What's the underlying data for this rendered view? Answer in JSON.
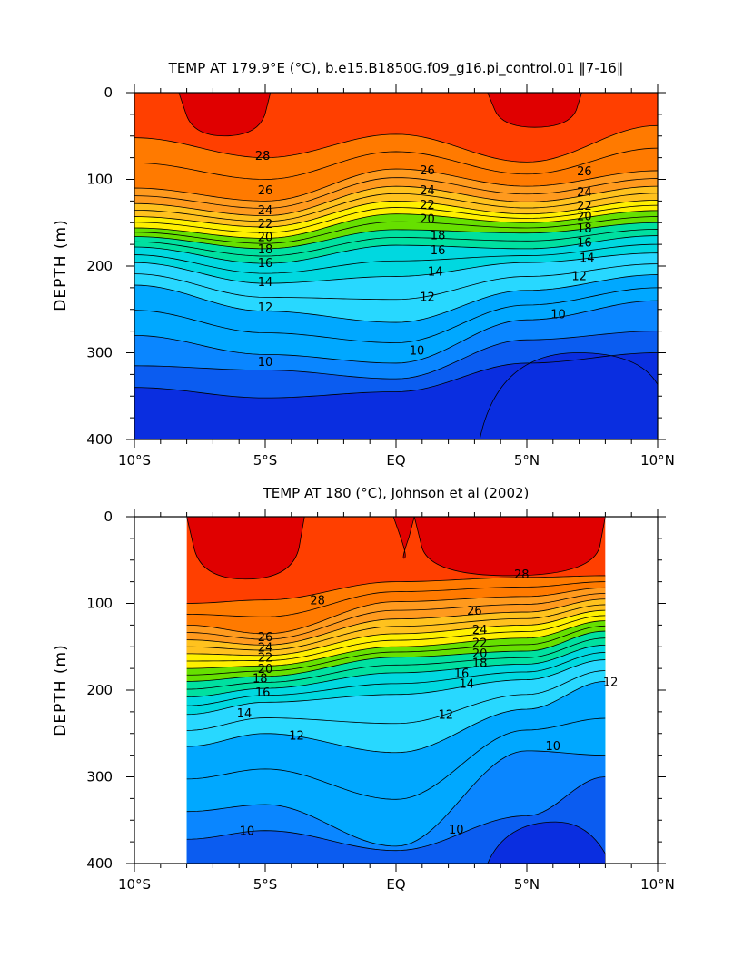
{
  "chart_data": [
    {
      "type": "contour",
      "title": "TEMP AT 179.9°E (°C), b.e15.B1850G.f09_g16.pi_control.01 ‖7-16‖",
      "xlabel": "",
      "ylabel": "DEPTH (m)",
      "xlim": [
        -10,
        10
      ],
      "ylim": [
        400,
        0
      ],
      "x_ticks": [
        -10,
        -5,
        0,
        5,
        10
      ],
      "x_tick_labels": [
        "10°S",
        "5°S",
        "EQ",
        "5°N",
        "10°N"
      ],
      "y_ticks": [
        0,
        100,
        200,
        300,
        400
      ],
      "y_tick_labels": [
        "0",
        "100",
        "200",
        "300",
        "400"
      ],
      "data_extent_x": [
        -10,
        10
      ],
      "isotherms": [
        {
          "level": 28,
          "label": "28",
          "x": [
            -10,
            -5,
            0,
            5,
            10
          ],
          "depth": [
            52,
            75,
            48,
            80,
            38
          ]
        },
        {
          "level": 26,
          "label": "26",
          "x": [
            -10,
            -5,
            0,
            5,
            10
          ],
          "depth": [
            110,
            125,
            88,
            108,
            90
          ]
        },
        {
          "level": 24,
          "label": "24",
          "x": [
            -10,
            -5,
            0,
            5,
            10
          ],
          "depth": [
            128,
            142,
            108,
            126,
            108
          ]
        },
        {
          "level": 22,
          "label": "22",
          "x": [
            -10,
            -5,
            0,
            5,
            10
          ],
          "depth": [
            143,
            155,
            125,
            140,
            124
          ]
        },
        {
          "level": 20,
          "label": "20",
          "x": [
            -10,
            -5,
            0,
            5,
            10
          ],
          "depth": [
            156,
            168,
            140,
            150,
            136
          ]
        },
        {
          "level": 18,
          "label": "18",
          "x": [
            -10,
            -5,
            0,
            5,
            10
          ],
          "depth": [
            166,
            180,
            158,
            162,
            150
          ]
        },
        {
          "level": 16,
          "label": "16",
          "x": [
            -10,
            -5,
            0,
            5,
            10
          ],
          "depth": [
            178,
            197,
            176,
            180,
            165
          ]
        },
        {
          "level": 14,
          "label": "14",
          "x": [
            -10,
            -5,
            0,
            5,
            10
          ],
          "depth": [
            196,
            220,
            212,
            196,
            185
          ]
        },
        {
          "level": 12,
          "label": "12",
          "x": [
            -10,
            -5,
            0,
            5,
            10
          ],
          "depth": [
            222,
            252,
            265,
            228,
            210
          ]
        },
        {
          "level": 10,
          "label": "10",
          "x": [
            -10,
            -5,
            0,
            5,
            10
          ],
          "depth": [
            280,
            302,
            312,
            262,
            240
          ]
        },
        {
          "level": 9,
          "label": "",
          "x": [
            -10,
            -5,
            0,
            5,
            10
          ],
          "depth": [
            315,
            320,
            330,
            285,
            275
          ]
        },
        {
          "level": 8,
          "label": "",
          "x": [
            -10,
            -5,
            0,
            5,
            10
          ],
          "depth": [
            340,
            352,
            345,
            312,
            300
          ]
        }
      ],
      "contour_labels": [
        {
          "text": "28",
          "x": -5.1,
          "depth": 72
        },
        {
          "text": "26",
          "x": -5,
          "depth": 112
        },
        {
          "text": "24",
          "x": -5,
          "depth": 135
        },
        {
          "text": "22",
          "x": -5,
          "depth": 151
        },
        {
          "text": "20",
          "x": -5,
          "depth": 166
        },
        {
          "text": "18",
          "x": -5,
          "depth": 180
        },
        {
          "text": "16",
          "x": -5,
          "depth": 196
        },
        {
          "text": "14",
          "x": -5,
          "depth": 218
        },
        {
          "text": "12",
          "x": -5,
          "depth": 247
        },
        {
          "text": "10",
          "x": -5,
          "depth": 310
        },
        {
          "text": "26",
          "x": 1.2,
          "depth": 89
        },
        {
          "text": "24",
          "x": 1.2,
          "depth": 112
        },
        {
          "text": "22",
          "x": 1.2,
          "depth": 129
        },
        {
          "text": "20",
          "x": 1.2,
          "depth": 145
        },
        {
          "text": "18",
          "x": 1.6,
          "depth": 164
        },
        {
          "text": "16",
          "x": 1.6,
          "depth": 181
        },
        {
          "text": "14",
          "x": 1.5,
          "depth": 206
        },
        {
          "text": "12",
          "x": 1.2,
          "depth": 235
        },
        {
          "text": "10",
          "x": 0.8,
          "depth": 297
        },
        {
          "text": "26",
          "x": 7.2,
          "depth": 90
        },
        {
          "text": "24",
          "x": 7.2,
          "depth": 114
        },
        {
          "text": "22",
          "x": 7.2,
          "depth": 130
        },
        {
          "text": "20",
          "x": 7.2,
          "depth": 142
        },
        {
          "text": "18",
          "x": 7.2,
          "depth": 156
        },
        {
          "text": "16",
          "x": 7.2,
          "depth": 172
        },
        {
          "text": "14",
          "x": 7.3,
          "depth": 190
        },
        {
          "text": "12",
          "x": 7.0,
          "depth": 211
        },
        {
          "text": "10",
          "x": 6.2,
          "depth": 255
        }
      ]
    },
    {
      "type": "contour",
      "title": "TEMP AT 180 (°C), Johnson et al (2002)",
      "xlabel": "",
      "ylabel": "DEPTH (m)",
      "xlim": [
        -10,
        10
      ],
      "ylim": [
        400,
        0
      ],
      "x_ticks": [
        -10,
        -5,
        0,
        5,
        10
      ],
      "x_tick_labels": [
        "10°S",
        "5°S",
        "EQ",
        "5°N",
        "10°N"
      ],
      "y_ticks": [
        0,
        100,
        200,
        300,
        400
      ],
      "y_tick_labels": [
        "0",
        "100",
        "200",
        "300",
        "400"
      ],
      "data_extent_x": [
        -8,
        8
      ],
      "isotherms": [
        {
          "level": 28,
          "label": "28",
          "x": [
            -8,
            -5,
            0,
            5,
            8
          ],
          "depth": [
            100,
            96,
            75,
            70,
            68
          ]
        },
        {
          "level": 26,
          "label": "26",
          "x": [
            -8,
            -5,
            0,
            5,
            8
          ],
          "depth": [
            125,
            135,
            98,
            92,
            82
          ]
        },
        {
          "level": 24,
          "label": "24",
          "x": [
            -8,
            -5,
            0,
            5,
            8
          ],
          "depth": [
            142,
            148,
            118,
            110,
            95
          ]
        },
        {
          "level": 22,
          "label": "22",
          "x": [
            -8,
            -5,
            0,
            5,
            8
          ],
          "depth": [
            158,
            160,
            135,
            125,
            108
          ]
        },
        {
          "level": 20,
          "label": "20",
          "x": [
            -8,
            -5,
            0,
            5,
            8
          ],
          "depth": [
            175,
            172,
            150,
            140,
            120
          ]
        },
        {
          "level": 18,
          "label": "18",
          "x": [
            -8,
            -5,
            0,
            5,
            8
          ],
          "depth": [
            190,
            184,
            162,
            155,
            132
          ]
        },
        {
          "level": 16,
          "label": "16",
          "x": [
            -8,
            -5,
            0,
            5,
            8
          ],
          "depth": [
            208,
            198,
            180,
            170,
            148
          ]
        },
        {
          "level": 14,
          "label": "14",
          "x": [
            -8,
            -5,
            0,
            5,
            8
          ],
          "depth": [
            228,
            214,
            205,
            188,
            165
          ]
        },
        {
          "level": 12,
          "label": "12",
          "x": [
            -8,
            -5,
            0,
            5,
            8
          ],
          "depth": [
            265,
            250,
            272,
            222,
            190
          ]
        },
        {
          "level": 10,
          "label": "10",
          "x": [
            -8,
            -5,
            0,
            5,
            8
          ],
          "depth": [
            340,
            332,
            380,
            270,
            275
          ]
        },
        {
          "level": 9,
          "label": "",
          "x": [
            -8,
            -5,
            0,
            5,
            8
          ],
          "depth": [
            372,
            362,
            385,
            345,
            300
          ]
        }
      ],
      "contour_labels": [
        {
          "text": "28",
          "x": -3.0,
          "depth": 96
        },
        {
          "text": "26",
          "x": -5,
          "depth": 138
        },
        {
          "text": "24",
          "x": -5,
          "depth": 150
        },
        {
          "text": "22",
          "x": -5,
          "depth": 162
        },
        {
          "text": "20",
          "x": -5,
          "depth": 175
        },
        {
          "text": "18",
          "x": -5.2,
          "depth": 186
        },
        {
          "text": "16",
          "x": -5.1,
          "depth": 202
        },
        {
          "text": "14",
          "x": -5.8,
          "depth": 226
        },
        {
          "text": "12",
          "x": -3.8,
          "depth": 252
        },
        {
          "text": "10",
          "x": -5.7,
          "depth": 362
        },
        {
          "text": "28",
          "x": 4.8,
          "depth": 66
        },
        {
          "text": "26",
          "x": 3.0,
          "depth": 108
        },
        {
          "text": "24",
          "x": 3.2,
          "depth": 130
        },
        {
          "text": "22",
          "x": 3.2,
          "depth": 145
        },
        {
          "text": "20",
          "x": 3.2,
          "depth": 157
        },
        {
          "text": "18",
          "x": 3.2,
          "depth": 168
        },
        {
          "text": "16",
          "x": 2.5,
          "depth": 180
        },
        {
          "text": "14",
          "x": 2.7,
          "depth": 192
        },
        {
          "text": "12",
          "x": 1.9,
          "depth": 228
        },
        {
          "text": "12",
          "x": 8.2,
          "depth": 190
        },
        {
          "text": "10",
          "x": 6.0,
          "depth": 264
        },
        {
          "text": "10",
          "x": 2.3,
          "depth": 360
        }
      ]
    }
  ]
}
